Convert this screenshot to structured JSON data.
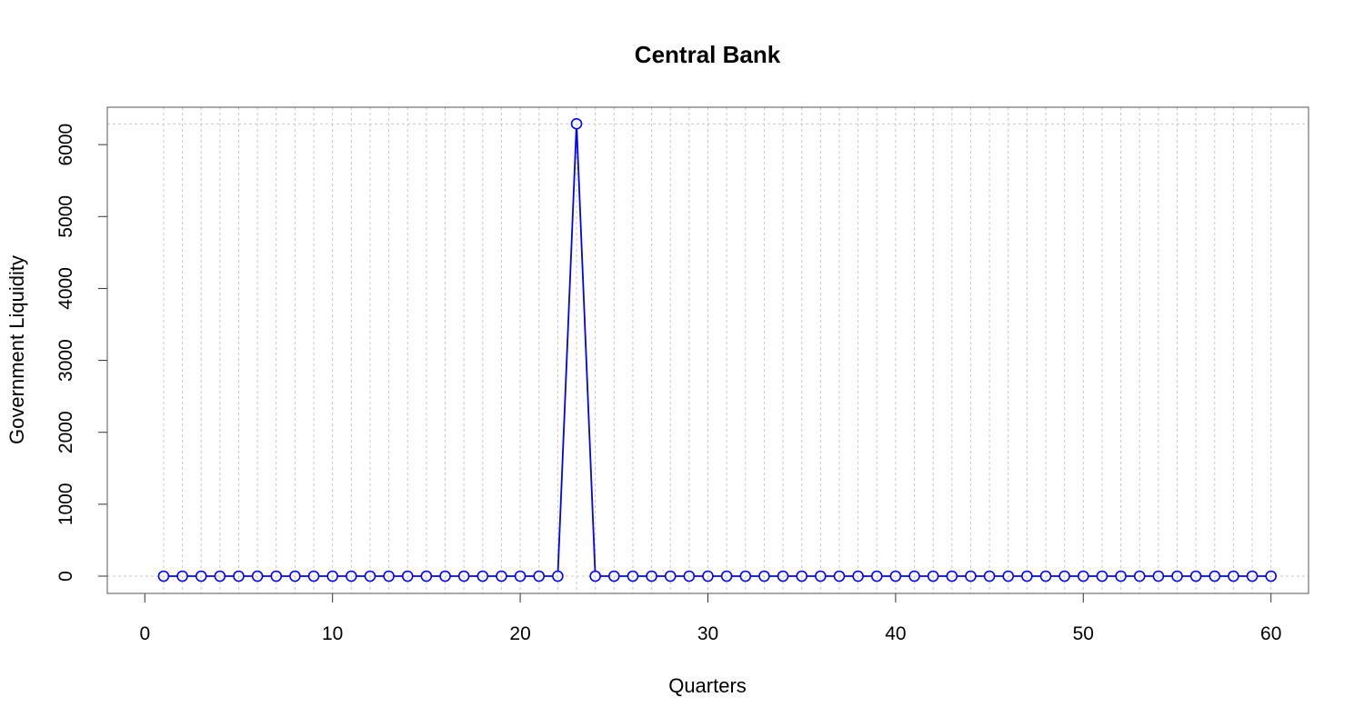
{
  "chart_data": {
    "type": "line",
    "title": "Central Bank",
    "xlabel": "Quarters",
    "ylabel": "Government Liquidity",
    "xlim": [
      -2,
      62
    ],
    "ylim": [
      -240,
      6520
    ],
    "x_ticks": [
      0,
      10,
      20,
      30,
      40,
      50,
      60
    ],
    "y_ticks": [
      0,
      1000,
      2000,
      3000,
      4000,
      5000,
      6000
    ],
    "grid": true,
    "grid_vertical_at": "each x value (1-60)",
    "grid_horizontal_at": [
      0,
      6290
    ],
    "series_color": "#0000ff",
    "marker": "open-circle",
    "x": [
      1,
      2,
      3,
      4,
      5,
      6,
      7,
      8,
      9,
      10,
      11,
      12,
      13,
      14,
      15,
      16,
      17,
      18,
      19,
      20,
      21,
      22,
      23,
      24,
      25,
      26,
      27,
      28,
      29,
      30,
      31,
      32,
      33,
      34,
      35,
      36,
      37,
      38,
      39,
      40,
      41,
      42,
      43,
      44,
      45,
      46,
      47,
      48,
      49,
      50,
      51,
      52,
      53,
      54,
      55,
      56,
      57,
      58,
      59,
      60
    ],
    "values": [
      0,
      0,
      0,
      0,
      0,
      0,
      0,
      0,
      0,
      0,
      0,
      0,
      0,
      0,
      0,
      0,
      0,
      0,
      0,
      0,
      0,
      0,
      6290,
      0,
      0,
      0,
      0,
      0,
      0,
      0,
      0,
      0,
      0,
      0,
      0,
      0,
      0,
      0,
      0,
      0,
      0,
      0,
      0,
      0,
      0,
      0,
      0,
      0,
      0,
      0,
      0,
      0,
      0,
      0,
      0,
      0,
      0,
      0,
      0,
      0
    ]
  }
}
